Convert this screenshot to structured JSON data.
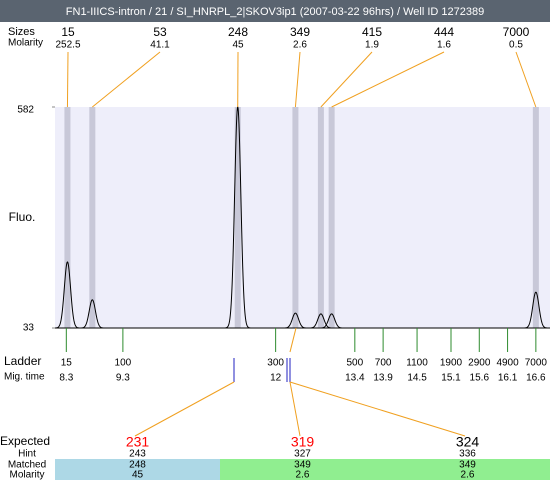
{
  "chart_data": {
    "type": "electropherogram",
    "title": "FN1-IIICS-intron / 21 / SI_HNRPL_2|SKOV3ip1 (2007-03-22 96hrs) / Well ID 1272389",
    "y_label": "Fluo.",
    "ylim": [
      33,
      582
    ],
    "yticks": [
      33,
      582
    ],
    "xlim": [
      8.1,
      16.85
    ],
    "trace_color": "#000000",
    "band_color": "#c8c8d8",
    "plot_color": "#eeeefa",
    "peaks": {
      "label": "Sizes",
      "molarity_label": "Molarity",
      "sizes": [
        15,
        53,
        248,
        349,
        415,
        444,
        7000
      ],
      "molarity": [
        252.5,
        41.1,
        45,
        2.6,
        1.9,
        1.6,
        0.5
      ],
      "mig_time": [
        8.32,
        8.76,
        11.33,
        12.35,
        12.8,
        12.99,
        16.6
      ],
      "fluo": [
        197,
        103,
        582,
        70,
        68,
        68,
        122
      ]
    },
    "ladder": {
      "label": "Ladder",
      "mig_label": "Mig. time",
      "color": "#2e8b2e",
      "sizes": [
        15,
        100,
        300,
        500,
        700,
        1100,
        1900,
        2900,
        4900,
        7000
      ],
      "mig_time": [
        8.3,
        9.3,
        12,
        13.4,
        13.9,
        14.5,
        15.1,
        15.6,
        16.1,
        16.6
      ]
    },
    "expected": {
      "label": "Expected",
      "hint_label": "Hint",
      "matched_label": "Matched",
      "molarity_label": "Molarity",
      "values": [
        231,
        319,
        324
      ],
      "colors": [
        "#ff0000",
        "#ff0000",
        "#000000"
      ],
      "hint": [
        243,
        327,
        336
      ],
      "matched": [
        248,
        349,
        349
      ],
      "molarity": [
        45,
        2.6,
        2.6
      ],
      "block_colors": [
        "#add8e6",
        "#90ee90",
        "#90ee90"
      ]
    }
  }
}
